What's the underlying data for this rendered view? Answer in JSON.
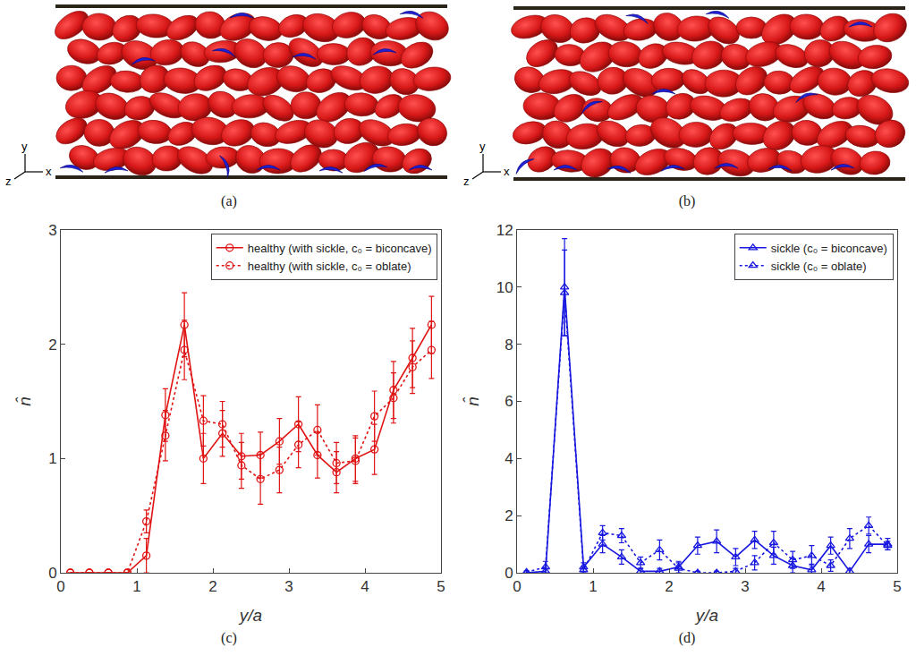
{
  "illustrations": [
    {
      "panel_label": "(a)",
      "axes": [
        "x",
        "y",
        "z"
      ],
      "color": "#d81818"
    },
    {
      "panel_label": "(b)",
      "axes": [
        "x",
        "y",
        "z"
      ],
      "color": "#d81818"
    }
  ],
  "chart_data": [
    {
      "type": "line",
      "panel_label": "(c)",
      "x_label": "y/a",
      "y_label": "n̂",
      "xlim": [
        0,
        5
      ],
      "xticks": [
        0,
        1,
        2,
        3,
        4,
        5
      ],
      "ylim": [
        0,
        3
      ],
      "yticks": [
        0,
        1,
        2,
        3
      ],
      "legend": "upper right",
      "x": [
        0.125,
        0.375,
        0.625,
        0.875,
        1.125,
        1.375,
        1.625,
        1.875,
        2.125,
        2.375,
        2.625,
        2.875,
        3.125,
        3.375,
        3.625,
        3.875,
        4.125,
        4.375,
        4.625,
        4.875
      ],
      "series": [
        {
          "name": "healthy (with sickle, c₀ = biconcave)",
          "color": "#e01414",
          "line_style": "solid",
          "marker": "circle",
          "values": [
            0,
            0,
            0,
            0,
            0.15,
            1.38,
            2.17,
            1.0,
            1.22,
            1.02,
            1.03,
            1.15,
            1.3,
            1.03,
            0.88,
            1.0,
            1.08,
            1.6,
            1.88,
            2.17
          ],
          "error": [
            0,
            0,
            0,
            0,
            0.15,
            0.23,
            0.28,
            0.22,
            0.2,
            0.2,
            0.2,
            0.2,
            0.24,
            0.2,
            0.18,
            0.2,
            0.22,
            0.25,
            0.26,
            0.25
          ]
        },
        {
          "name": "healthy (with sickle, c₀ = oblate)",
          "color": "#e01414",
          "line_style": "dot",
          "marker": "circle",
          "values": [
            0,
            0,
            0,
            0,
            0.45,
            1.2,
            1.95,
            1.33,
            1.3,
            0.94,
            0.82,
            0.9,
            1.12,
            1.25,
            0.96,
            0.98,
            1.37,
            1.53,
            1.8,
            1.95
          ],
          "error": [
            0,
            0,
            0,
            0,
            0.1,
            0.22,
            0.26,
            0.22,
            0.2,
            0.2,
            0.22,
            0.2,
            0.2,
            0.22,
            0.18,
            0.2,
            0.22,
            0.22,
            0.23,
            0.25
          ]
        }
      ]
    },
    {
      "type": "line",
      "panel_label": "(d)",
      "x_label": "y/a",
      "y_label": "n̂",
      "xlim": [
        0,
        5
      ],
      "xticks": [
        0,
        1,
        2,
        3,
        4,
        5
      ],
      "ylim": [
        0,
        12
      ],
      "yticks": [
        0,
        2,
        4,
        6,
        8,
        10,
        12
      ],
      "legend": "upper right",
      "x": [
        0.125,
        0.375,
        0.625,
        0.875,
        1.125,
        1.375,
        1.625,
        1.875,
        2.125,
        2.375,
        2.625,
        2.875,
        3.125,
        3.375,
        3.625,
        3.875,
        4.125,
        4.375,
        4.625,
        4.875
      ],
      "series": [
        {
          "name": "sickle (c₀ = biconcave)",
          "color": "#1818e0",
          "line_style": "solid",
          "marker": "triangle-up",
          "values": [
            0,
            0.05,
            10.0,
            0.2,
            1.0,
            0.55,
            0.05,
            0.05,
            0.2,
            0.95,
            1.1,
            0.55,
            1.15,
            0.6,
            0.25,
            0.1,
            0.95,
            0.05,
            1.0,
            1.0
          ],
          "error": [
            0,
            0.1,
            1.7,
            0.15,
            0.3,
            0.25,
            0.1,
            0.1,
            0.2,
            0.3,
            0.4,
            0.3,
            0.3,
            0.3,
            0.25,
            0.2,
            0.3,
            0.1,
            0.3,
            0.2
          ]
        },
        {
          "name": "sickle (c₀ = oblate)",
          "color": "#1818e0",
          "line_style": "dot",
          "marker": "triangle-up",
          "values": [
            0.02,
            0.2,
            9.8,
            0.1,
            1.4,
            1.3,
            0.35,
            0.8,
            0.15,
            0.0,
            0.0,
            0.05,
            0.35,
            1.05,
            0.45,
            0.6,
            0.25,
            1.2,
            1.65,
            0.95
          ],
          "error": [
            0.05,
            0.2,
            1.5,
            0.1,
            0.25,
            0.25,
            0.2,
            0.35,
            0.2,
            0.05,
            0.05,
            0.1,
            0.25,
            0.4,
            0.3,
            0.35,
            0.2,
            0.35,
            0.3,
            0.15
          ]
        }
      ]
    }
  ]
}
